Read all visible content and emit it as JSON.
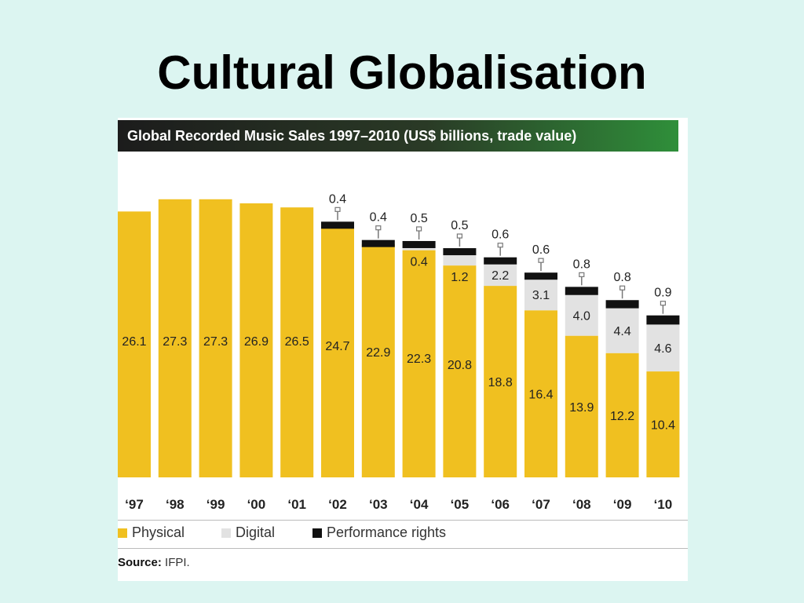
{
  "slide": {
    "title": "Cultural Globalisation"
  },
  "chart_data": {
    "type": "bar",
    "stacked": true,
    "title": "Global Recorded Music Sales 1997–2010 (US$ billions, trade value)",
    "categories": [
      "‘97",
      "‘98",
      "‘99",
      "‘00",
      "‘01",
      "‘02",
      "‘03",
      "‘04",
      "‘05",
      "‘06",
      "‘07",
      "‘08",
      "‘09",
      "‘10"
    ],
    "series": [
      {
        "name": "Physical",
        "color": "#f0c020",
        "values": [
          26.1,
          27.3,
          27.3,
          26.9,
          26.5,
          24.7,
          22.9,
          22.3,
          20.8,
          18.8,
          16.4,
          13.9,
          12.2,
          10.4
        ]
      },
      {
        "name": "Digital",
        "color": "#e2e2e2",
        "values": [
          null,
          null,
          null,
          null,
          null,
          null,
          null,
          0.4,
          1.2,
          2.2,
          3.1,
          4.0,
          4.4,
          4.6
        ]
      },
      {
        "name": "Performance rights",
        "color": "#111111",
        "values": [
          null,
          null,
          null,
          null,
          null,
          0.4,
          0.4,
          0.5,
          0.5,
          0.6,
          0.6,
          0.8,
          0.8,
          0.9
        ]
      }
    ],
    "value_labels": {
      "physical": [
        "26.1",
        "27.3",
        "27.3",
        "26.9",
        "26.5",
        "24.7",
        "22.9",
        "22.3",
        "20.8",
        "18.8",
        "16.4",
        "13.9",
        "12.2",
        "10.4"
      ],
      "digital": [
        null,
        null,
        null,
        null,
        null,
        null,
        null,
        "0.4",
        "1.2",
        "2.2",
        "3.1",
        "4.0",
        "4.4",
        "4.6"
      ],
      "performance": [
        null,
        null,
        null,
        null,
        null,
        "0.4",
        "0.4",
        "0.5",
        "0.5",
        "0.6",
        "0.6",
        "0.8",
        "0.8",
        "0.9"
      ]
    },
    "ylim": [
      0,
      27.9
    ],
    "grid": false,
    "legend_position": "bottom",
    "source_label": "Source:",
    "source_value": "IFPI."
  }
}
